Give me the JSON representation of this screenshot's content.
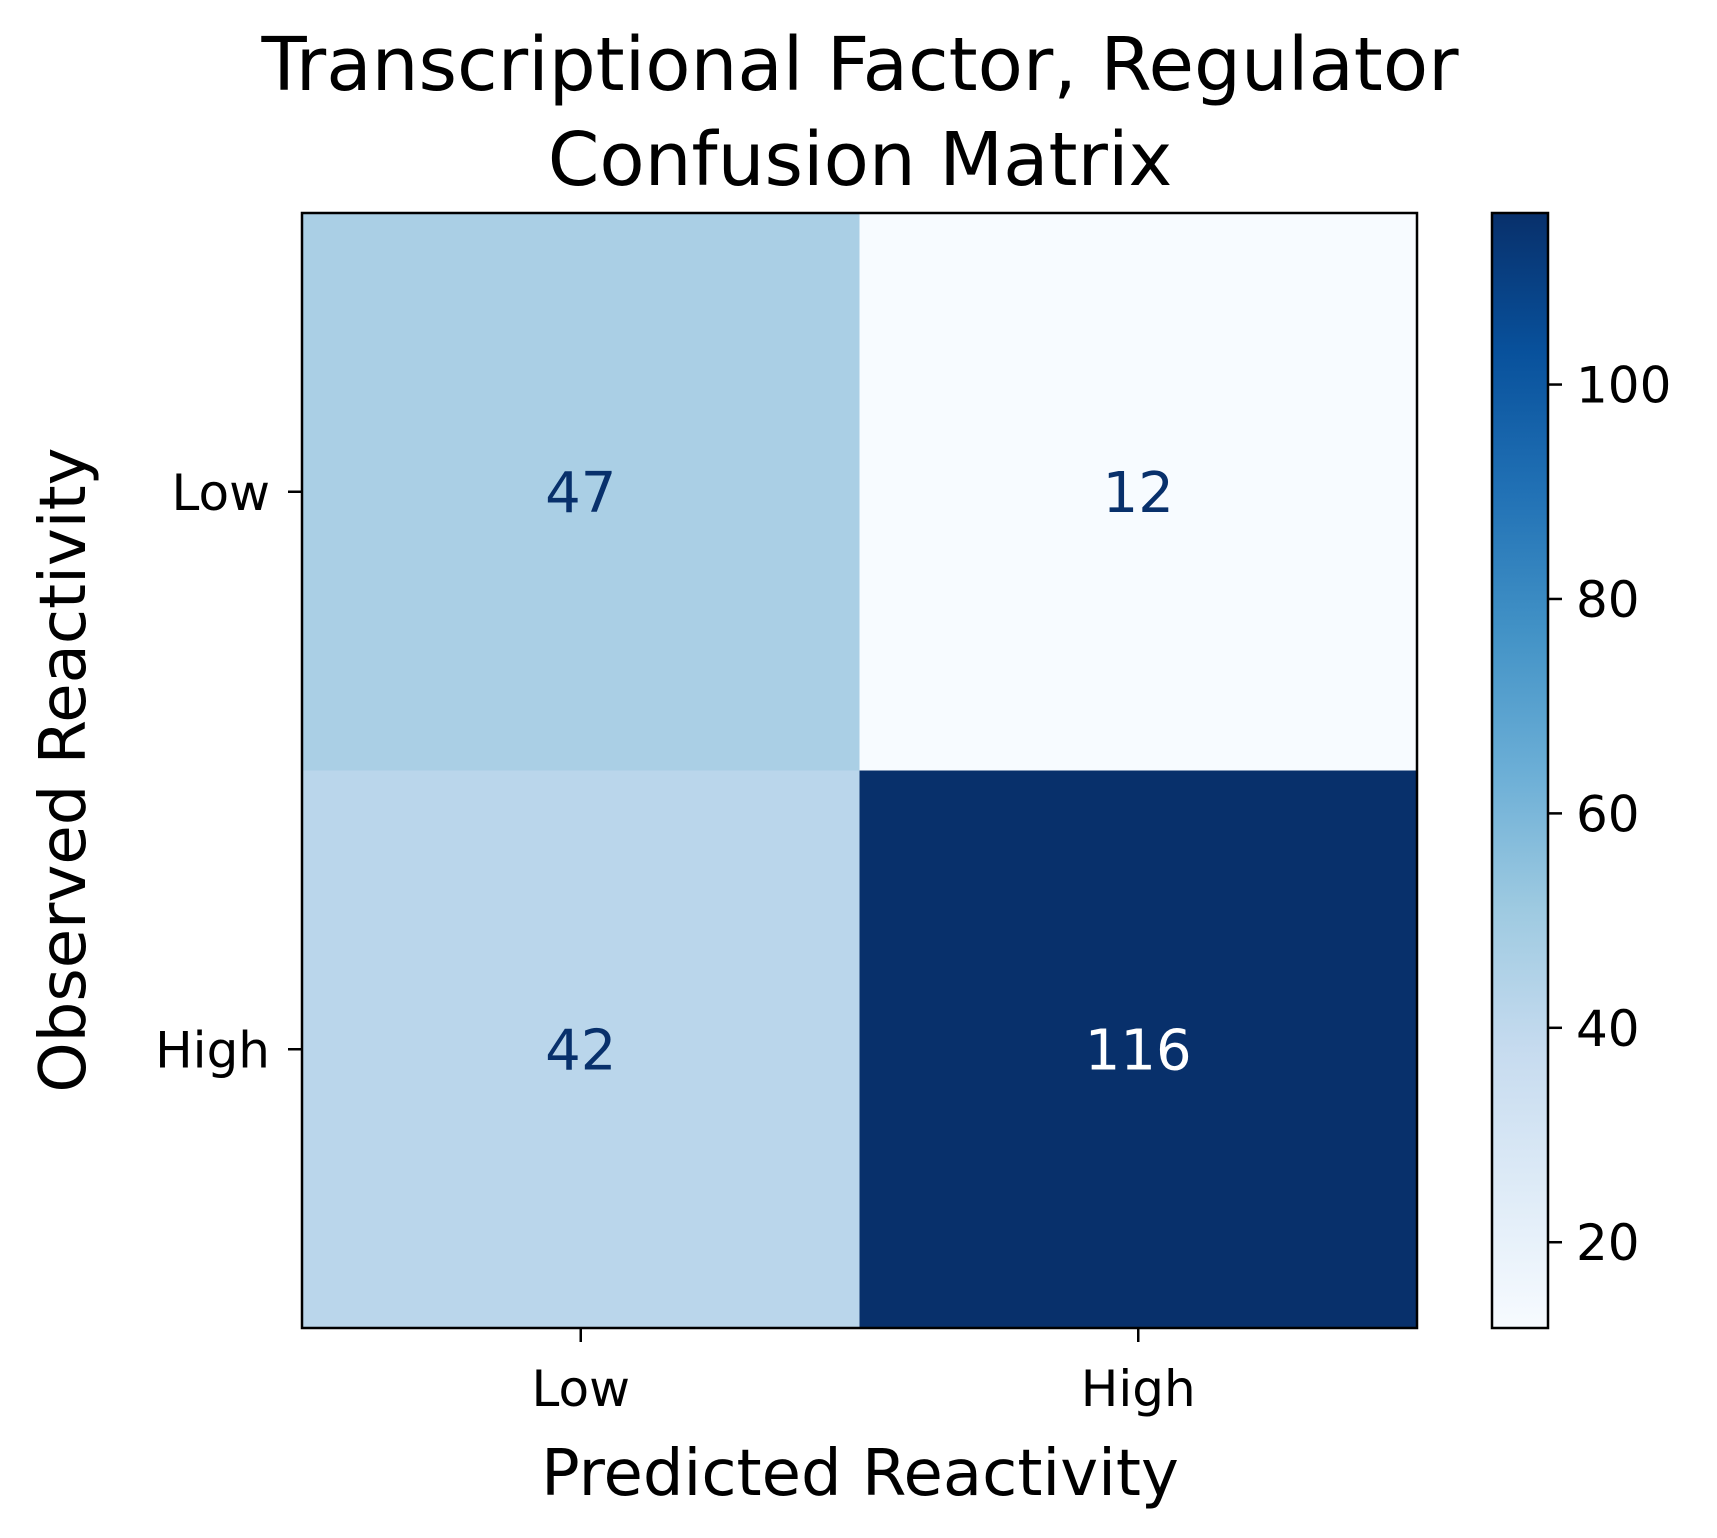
{
  "chart_data": {
    "type": "heatmap",
    "title_lines": [
      "Transcriptional Factor, Regulator",
      "Confusion Matrix"
    ],
    "xlabel": "Predicted Reactivity",
    "ylabel": "Observed Reactivity",
    "x_categories": [
      "Low",
      "High"
    ],
    "y_categories": [
      "Low",
      "High"
    ],
    "values": [
      [
        47,
        12
      ],
      [
        42,
        116
      ]
    ],
    "colormap": "Blues",
    "colorbar": {
      "vmin": 12,
      "vmax": 116,
      "ticks": [
        20,
        40,
        60,
        80,
        100
      ]
    },
    "text_colors": {
      "dark_text": "#08306b",
      "light_text": "#ffffff"
    }
  }
}
